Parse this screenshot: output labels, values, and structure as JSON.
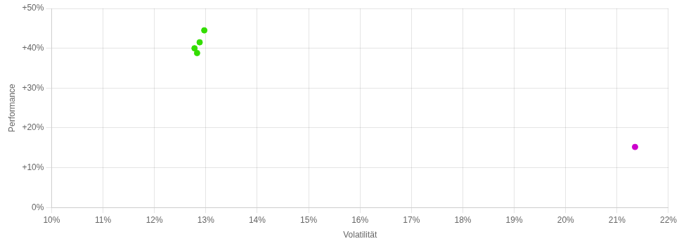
{
  "chart_data": {
    "type": "scatter",
    "xlabel": "Volatilität",
    "ylabel": "Performance",
    "series": [
      {
        "color": "#33dd00",
        "x": [
          0.1297,
          0.1288,
          0.1278,
          0.1283
        ],
        "values": [
          0.445,
          0.415,
          0.4,
          0.388
        ]
      },
      {
        "color": "#cc00cc",
        "x": [
          0.2135
        ],
        "values": [
          0.152
        ]
      }
    ],
    "xlim": [
      0.1,
      0.22
    ],
    "ylim": [
      0.0,
      0.5
    ],
    "xticks": [
      {
        "value": 0.1,
        "label": "10%"
      },
      {
        "value": 0.11,
        "label": "11%"
      },
      {
        "value": 0.12,
        "label": "12%"
      },
      {
        "value": 0.13,
        "label": "13%"
      },
      {
        "value": 0.14,
        "label": "14%"
      },
      {
        "value": 0.15,
        "label": "15%"
      },
      {
        "value": 0.16,
        "label": "16%"
      },
      {
        "value": 0.17,
        "label": "17%"
      },
      {
        "value": 0.18,
        "label": "18%"
      },
      {
        "value": 0.19,
        "label": "19%"
      },
      {
        "value": 0.2,
        "label": "20%"
      },
      {
        "value": 0.21,
        "label": "21%"
      },
      {
        "value": 0.22,
        "label": "22%"
      }
    ],
    "yticks": [
      {
        "value": 0.0,
        "label": "0%"
      },
      {
        "value": 0.1,
        "label": "+10%"
      },
      {
        "value": 0.2,
        "label": "+20%"
      },
      {
        "value": 0.3,
        "label": "+30%"
      },
      {
        "value": 0.4,
        "label": "+40%"
      },
      {
        "value": 0.5,
        "label": "+50%"
      }
    ],
    "grid": true
  }
}
